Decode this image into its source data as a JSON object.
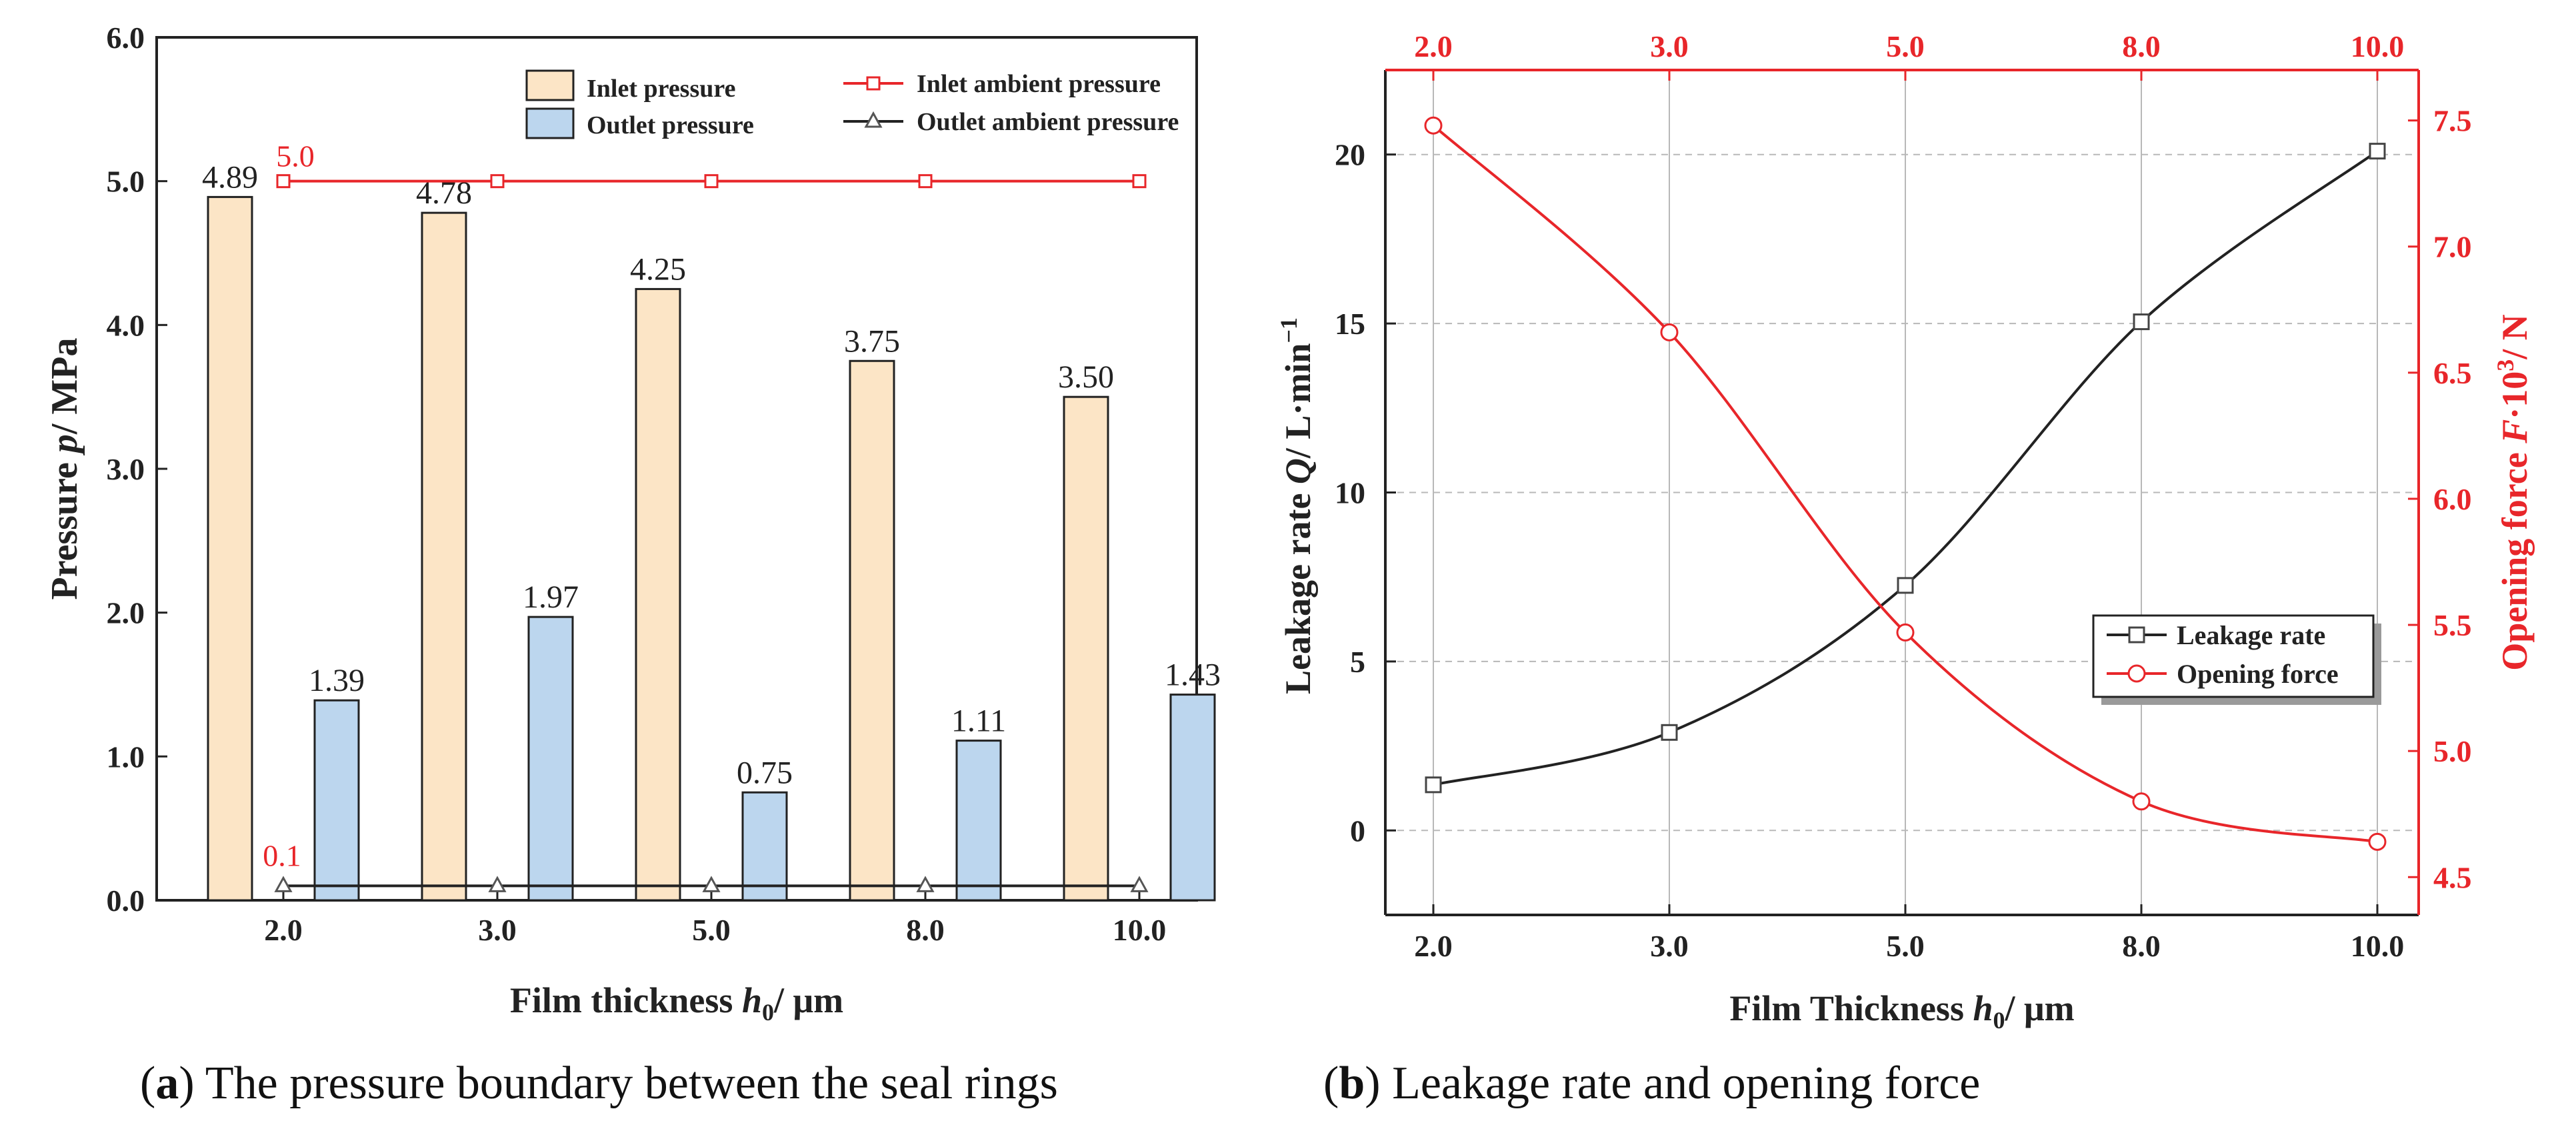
{
  "colors": {
    "inlet_bar": "#fce5c6",
    "outlet_bar": "#bcd6ee",
    "bar_edge": "#222222",
    "red": "#e8262a",
    "black": "#222222",
    "grid": "#b8b8b8"
  },
  "captions": {
    "a": {
      "label": "a",
      "text": "The pressure boundary between the seal rings"
    },
    "b": {
      "label": "b",
      "text": "Leakage rate and opening force"
    }
  },
  "chart_data": [
    {
      "id": "a",
      "type": "bar",
      "title": "",
      "xlabel": "Film thickness h₀/  μm",
      "ylabel": "Pressure p/  MPa",
      "categories": [
        "2.0",
        "3.0",
        "5.0",
        "8.0",
        "10.0"
      ],
      "ylim": [
        0,
        6
      ],
      "yticks": [
        "0.0",
        "1.0",
        "2.0",
        "3.0",
        "4.0",
        "5.0",
        "6.0"
      ],
      "grid": false,
      "series": [
        {
          "name": "Inlet pressure",
          "kind": "bar",
          "values": [
            4.89,
            4.78,
            4.25,
            3.75,
            3.5
          ],
          "labels": [
            "4.89",
            "4.78",
            "4.25",
            "3.75",
            "3.50"
          ]
        },
        {
          "name": "Outlet pressure",
          "kind": "bar",
          "values": [
            1.39,
            1.97,
            0.75,
            1.11,
            1.43
          ],
          "labels": [
            "1.39",
            "1.97",
            "0.75",
            "1.11",
            "1.43"
          ]
        },
        {
          "name": "Inlet ambient pressure",
          "kind": "line",
          "marker": "square",
          "values": [
            5.0,
            5.0,
            5.0,
            5.0,
            5.0
          ]
        },
        {
          "name": "Outlet ambient pressure",
          "kind": "line",
          "marker": "triangle",
          "values": [
            0.1,
            0.1,
            0.1,
            0.1,
            0.1
          ]
        }
      ],
      "annotations": [
        "5.0",
        "0.1"
      ],
      "legend": "top"
    },
    {
      "id": "b",
      "type": "line",
      "title": "",
      "xlabel": "Film Thickness h₀/  μm",
      "ylabel_left": "Leakage rate Q/  L·min⁻¹",
      "ylabel_right": "Opening force F·10³/  N",
      "categories": [
        "2.0",
        "3.0",
        "5.0",
        "8.0",
        "10.0"
      ],
      "ylim_left": [
        -2.5,
        22.5
      ],
      "yticks_left": [
        "0",
        "5",
        "10",
        "15",
        "20"
      ],
      "ylim_right": [
        4.35,
        7.7
      ],
      "yticks_right": [
        "4.5",
        "5.0",
        "5.5",
        "6.0",
        "6.5",
        "7.0",
        "7.5"
      ],
      "grid": true,
      "series": [
        {
          "name": "Leakage rate",
          "axis": "left",
          "marker": "square",
          "values": [
            1.35,
            2.9,
            7.25,
            15.05,
            20.1
          ]
        },
        {
          "name": "Opening force",
          "axis": "right",
          "marker": "circle",
          "values": [
            7.48,
            6.66,
            5.47,
            4.8,
            4.64
          ]
        }
      ],
      "legend": "right"
    }
  ]
}
